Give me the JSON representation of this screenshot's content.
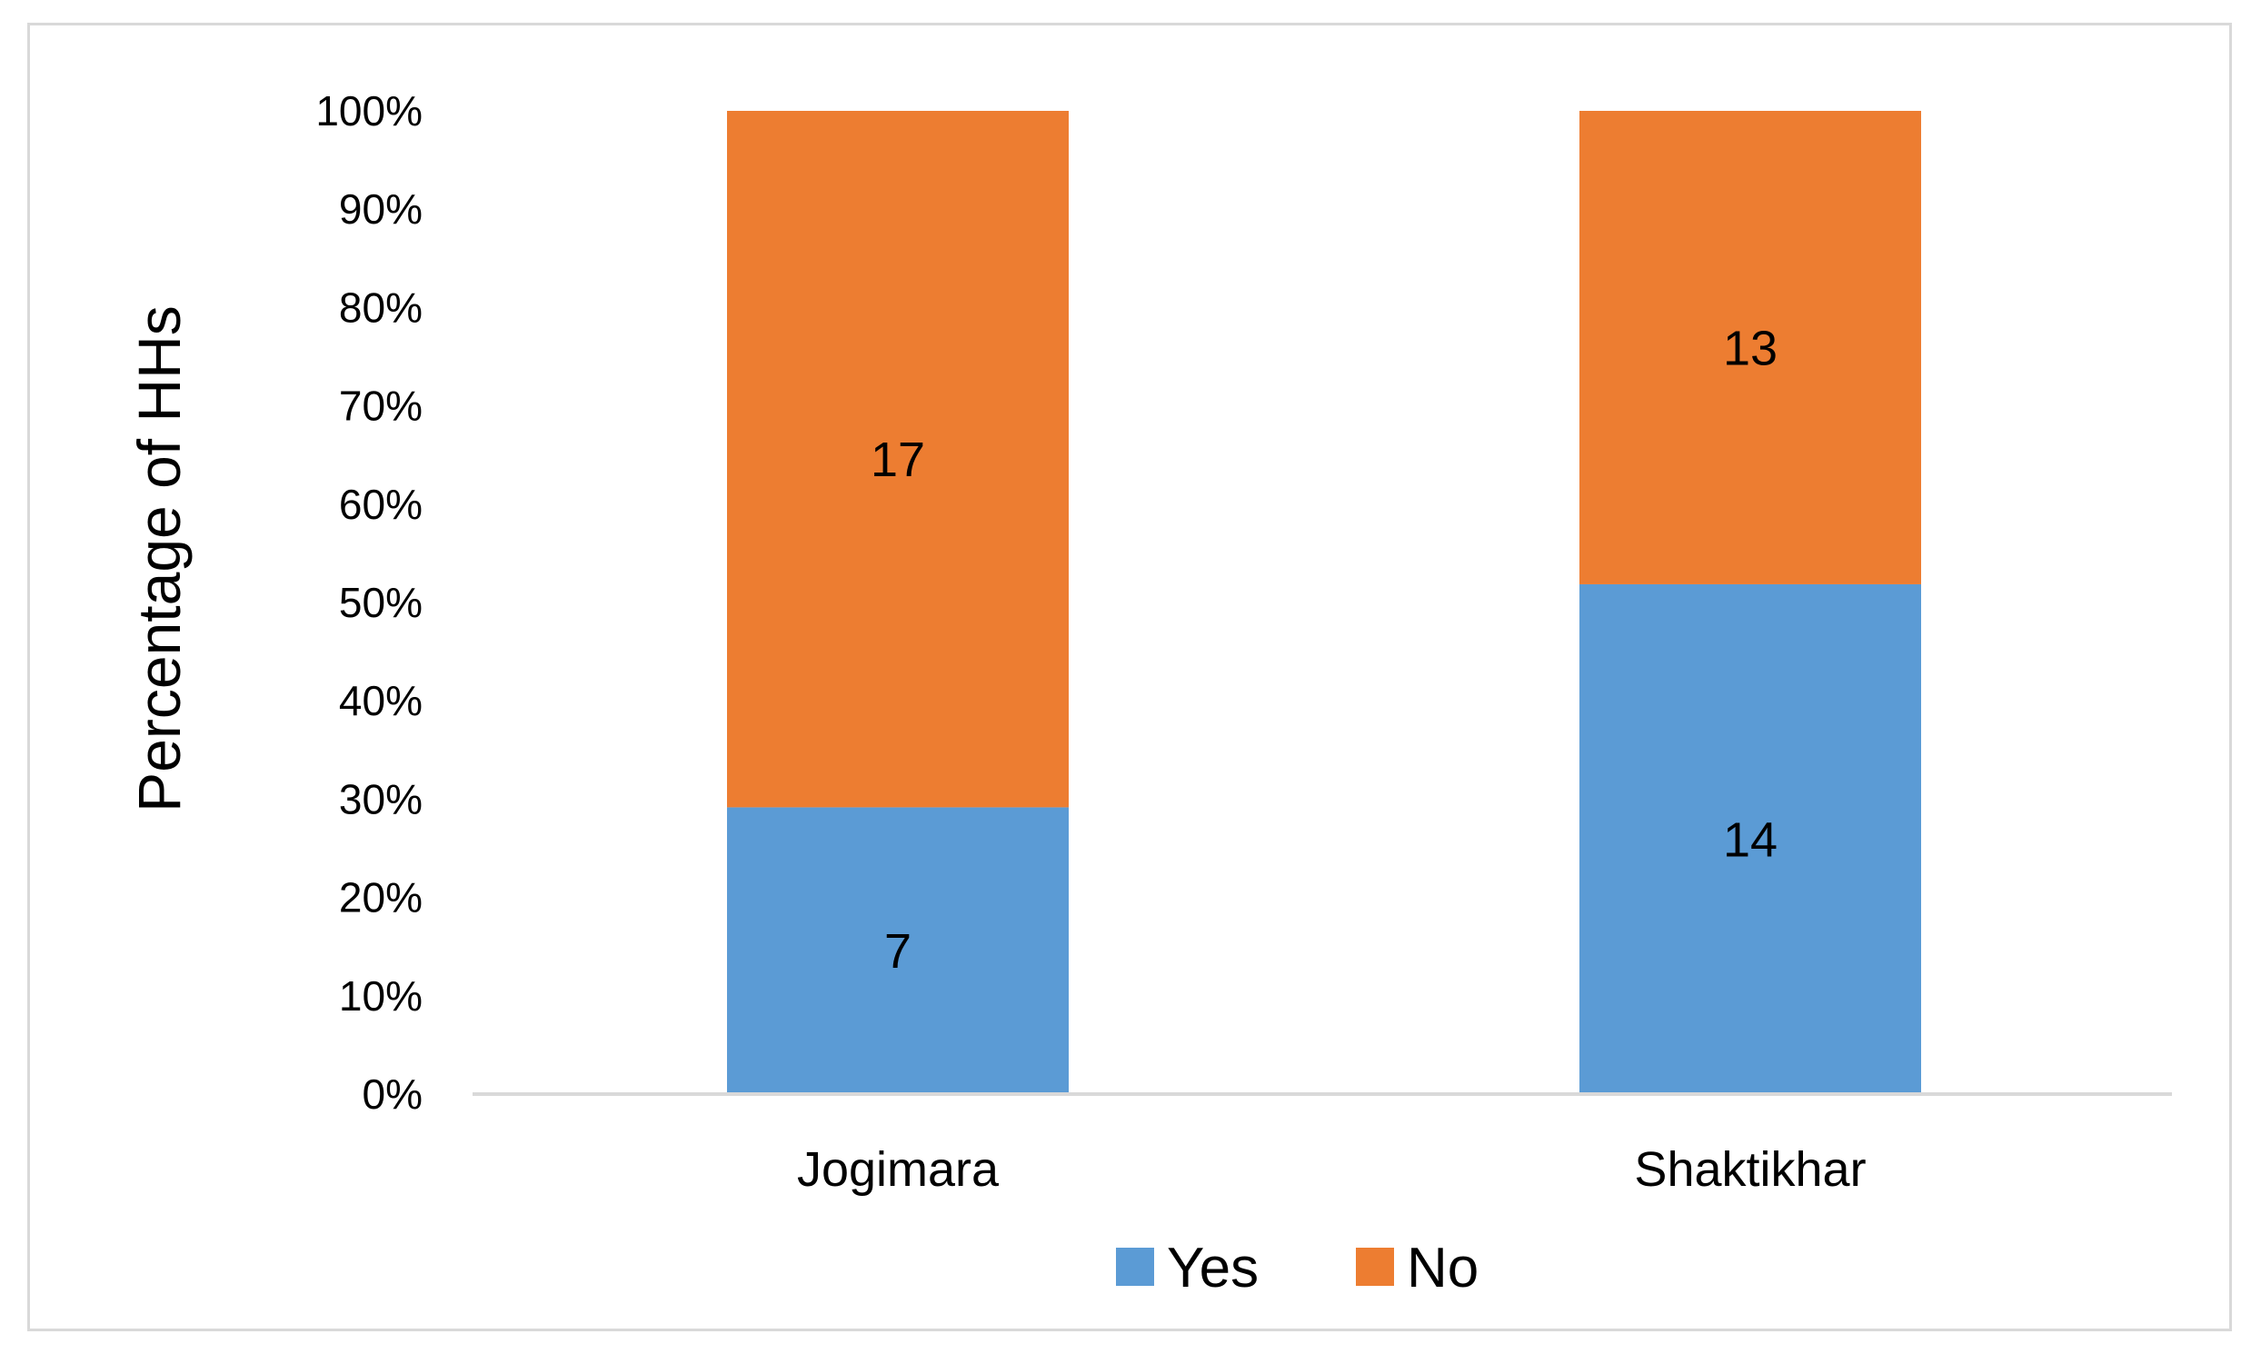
{
  "chart_data": {
    "type": "bar",
    "stacked": true,
    "normalized_percent": true,
    "categories": [
      "Jogimara",
      "Shaktikhar"
    ],
    "series": [
      {
        "name": "Yes",
        "values": [
          7,
          14
        ],
        "color": "#5b9bd5"
      },
      {
        "name": "No",
        "values": [
          17,
          13
        ],
        "color": "#ed7d31"
      }
    ],
    "ylabel": "Percentage of HHs",
    "xlabel": "",
    "ylim": [
      0,
      100
    ],
    "y_ticks": [
      "0%",
      "10%",
      "20%",
      "30%",
      "40%",
      "50%",
      "60%",
      "70%",
      "80%",
      "90%",
      "100%"
    ],
    "grid": false,
    "legend_position": "bottom"
  }
}
